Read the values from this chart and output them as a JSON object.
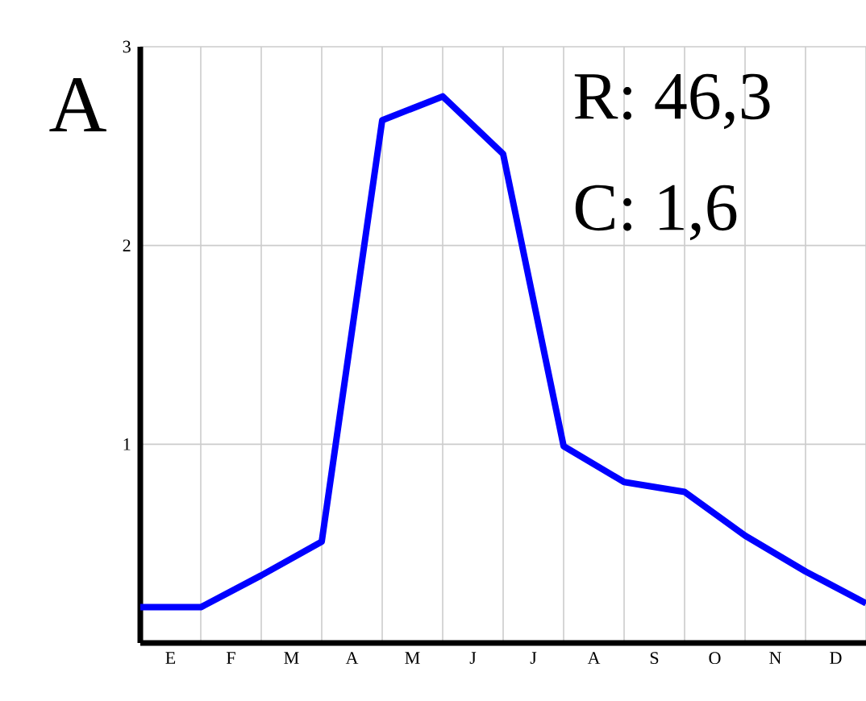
{
  "chart_data": {
    "type": "line",
    "categories": [
      null,
      "E",
      null,
      "F",
      null,
      "M",
      null,
      "A",
      null,
      "M",
      null,
      "J",
      null,
      "J",
      null,
      "A",
      null,
      "S",
      null,
      "O",
      null,
      "N",
      null,
      "D",
      null
    ],
    "series": [
      {
        "color": "#0000ff",
        "values": [
          0.18,
          null,
          0.18,
          null,
          0.34,
          null,
          0.51,
          null,
          2.63,
          null,
          2.75,
          null,
          2.46,
          null,
          0.99,
          null,
          0.81,
          null,
          0.76,
          null,
          0.54,
          null,
          0.36,
          null,
          0.2
        ]
      }
    ],
    "ylim": [
      0,
      3
    ],
    "yticks": [
      1,
      2,
      3
    ],
    "grid": true,
    "line_style": "solid",
    "annotations": [
      "A",
      "R: 46,3",
      "C: 1,6"
    ]
  }
}
